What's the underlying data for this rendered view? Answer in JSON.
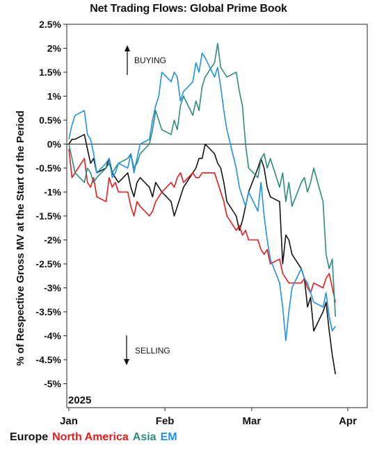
{
  "chart_data": {
    "type": "line",
    "title": "Net Trading Flows: Global Prime Book",
    "ylabel": "% of Respective Gross MV at the Start of the Period",
    "year_label": "2025",
    "ylim": [
      -5.5,
      2.5
    ],
    "yticks": [
      2.5,
      2.0,
      1.5,
      1.0,
      0.5,
      0,
      -0.5,
      -1,
      -1.5,
      -2,
      -2.5,
      -3,
      -3.5,
      -4,
      -4.5,
      -5
    ],
    "ytick_labels": [
      "2.5%",
      "2%",
      "1.5%",
      "1%",
      "0.5%",
      "0%",
      "-0.5%",
      "-1%",
      "-1.5%",
      "-2%",
      "-2.5%",
      "-3%",
      "-3.5%",
      "-4%",
      "-4.5%",
      "-5%"
    ],
    "xlim": [
      "2025-01-01",
      "2025-04-01"
    ],
    "xticks": [
      "2025-01-01",
      "2025-02-01",
      "2025-03-01",
      "2025-04-01"
    ],
    "xtick_labels": [
      "Jan",
      "Feb",
      "Mar",
      "Apr"
    ],
    "zero_line": true,
    "grid": false,
    "legend_position": "bottom-left",
    "annotations": [
      {
        "text": "BUYING",
        "arrow": "up"
      },
      {
        "text": "SELLING",
        "arrow": "down"
      }
    ],
    "series": [
      {
        "name": "Europe",
        "color": "#111111",
        "x": [
          "2025-01-01",
          "2025-01-02",
          "2025-01-03",
          "2025-01-06",
          "2025-01-07",
          "2025-01-08",
          "2025-01-09",
          "2025-01-10",
          "2025-01-13",
          "2025-01-14",
          "2025-01-15",
          "2025-01-16",
          "2025-01-17",
          "2025-01-20",
          "2025-01-21",
          "2025-01-22",
          "2025-01-23",
          "2025-01-24",
          "2025-01-27",
          "2025-01-28",
          "2025-01-29",
          "2025-01-30",
          "2025-01-31",
          "2025-02-03",
          "2025-02-04",
          "2025-02-05",
          "2025-02-06",
          "2025-02-07",
          "2025-02-10",
          "2025-02-11",
          "2025-02-12",
          "2025-02-13",
          "2025-02-14",
          "2025-02-17",
          "2025-02-18",
          "2025-02-19",
          "2025-02-20",
          "2025-02-21",
          "2025-02-24",
          "2025-02-25",
          "2025-02-26",
          "2025-02-27",
          "2025-02-28",
          "2025-03-03",
          "2025-03-04",
          "2025-03-05",
          "2025-03-06",
          "2025-03-07",
          "2025-03-10",
          "2025-03-11",
          "2025-03-12",
          "2025-03-13",
          "2025-03-14",
          "2025-03-17",
          "2025-03-18",
          "2025-03-19",
          "2025-03-20",
          "2025-03-21",
          "2025-03-24",
          "2025-03-25",
          "2025-03-26",
          "2025-03-27",
          "2025-03-28"
        ],
        "y": [
          0,
          0.1,
          0.1,
          0.2,
          -0.1,
          -0.4,
          -0.3,
          -0.6,
          -0.5,
          -0.3,
          -0.6,
          -0.7,
          -0.8,
          -0.6,
          -0.9,
          -1.1,
          -0.8,
          -0.7,
          -0.9,
          -1.1,
          -0.8,
          -0.9,
          -1.0,
          -1.2,
          -1.5,
          -1.3,
          -1.1,
          -0.9,
          -0.6,
          -0.5,
          -0.3,
          -0.3,
          0.0,
          -0.2,
          -0.4,
          -0.5,
          -0.8,
          -1.2,
          -1.5,
          -1.8,
          -1.6,
          -1.3,
          -1.0,
          -0.5,
          -0.3,
          -0.5,
          -0.9,
          -1.1,
          -1.2,
          -2.5,
          -1.9,
          -2.0,
          -2.3,
          -2.6,
          -2.8,
          -3.4,
          -3.2,
          -3.9,
          -3.5,
          -3.3,
          -3.9,
          -4.4,
          -4.8
        ]
      },
      {
        "name": "North America",
        "color": "#e41a1c",
        "x": [
          "2025-01-01",
          "2025-01-02",
          "2025-01-03",
          "2025-01-06",
          "2025-01-07",
          "2025-01-08",
          "2025-01-09",
          "2025-01-10",
          "2025-01-13",
          "2025-01-14",
          "2025-01-15",
          "2025-01-16",
          "2025-01-17",
          "2025-01-20",
          "2025-01-21",
          "2025-01-22",
          "2025-01-23",
          "2025-01-24",
          "2025-01-27",
          "2025-01-28",
          "2025-01-29",
          "2025-01-30",
          "2025-01-31",
          "2025-02-03",
          "2025-02-04",
          "2025-02-05",
          "2025-02-06",
          "2025-02-07",
          "2025-02-10",
          "2025-02-11",
          "2025-02-12",
          "2025-02-13",
          "2025-02-14",
          "2025-02-17",
          "2025-02-18",
          "2025-02-19",
          "2025-02-20",
          "2025-02-21",
          "2025-02-24",
          "2025-02-25",
          "2025-02-26",
          "2025-02-27",
          "2025-02-28",
          "2025-03-03",
          "2025-03-04",
          "2025-03-05",
          "2025-03-06",
          "2025-03-07",
          "2025-03-10",
          "2025-03-11",
          "2025-03-12",
          "2025-03-13",
          "2025-03-14",
          "2025-03-17",
          "2025-03-18",
          "2025-03-19",
          "2025-03-20",
          "2025-03-21",
          "2025-03-24",
          "2025-03-25",
          "2025-03-26",
          "2025-03-27",
          "2025-03-28"
        ],
        "y": [
          -0.1,
          -0.7,
          -0.6,
          -0.3,
          -0.8,
          -0.9,
          -0.7,
          -1.1,
          -1.2,
          -0.7,
          -0.9,
          -0.8,
          -1.0,
          -1.0,
          -1.3,
          -1.5,
          -1.2,
          -1.3,
          -1.5,
          -1.4,
          -1.2,
          -1.1,
          -1.0,
          -0.8,
          -0.9,
          -0.7,
          -0.6,
          -0.8,
          -0.6,
          -0.7,
          -0.7,
          -0.6,
          -0.6,
          -0.6,
          -0.8,
          -1.0,
          -1.2,
          -1.5,
          -1.8,
          -1.7,
          -1.9,
          -1.8,
          -2.0,
          -2.0,
          -2.2,
          -2.3,
          -2.2,
          -2.5,
          -2.4,
          -2.7,
          -2.8,
          -2.9,
          -2.9,
          -2.9,
          -2.8,
          -3.0,
          -3.1,
          -2.9,
          -3.0,
          -2.8,
          -2.7,
          -3.0,
          -3.3
        ]
      },
      {
        "name": "Asia",
        "color": "#2a8c7c",
        "x": [
          "2025-01-01",
          "2025-01-02",
          "2025-01-03",
          "2025-01-06",
          "2025-01-07",
          "2025-01-08",
          "2025-01-09",
          "2025-01-10",
          "2025-01-13",
          "2025-01-14",
          "2025-01-15",
          "2025-01-16",
          "2025-01-17",
          "2025-01-20",
          "2025-01-21",
          "2025-01-22",
          "2025-01-23",
          "2025-01-24",
          "2025-01-27",
          "2025-01-28",
          "2025-01-29",
          "2025-01-30",
          "2025-01-31",
          "2025-02-03",
          "2025-02-04",
          "2025-02-05",
          "2025-02-06",
          "2025-02-07",
          "2025-02-10",
          "2025-02-11",
          "2025-02-12",
          "2025-02-13",
          "2025-02-14",
          "2025-02-17",
          "2025-02-18",
          "2025-02-19",
          "2025-02-20",
          "2025-02-21",
          "2025-02-24",
          "2025-02-25",
          "2025-02-26",
          "2025-02-27",
          "2025-02-28",
          "2025-03-03",
          "2025-03-04",
          "2025-03-05",
          "2025-03-06",
          "2025-03-07",
          "2025-03-10",
          "2025-03-11",
          "2025-03-12",
          "2025-03-13",
          "2025-03-14",
          "2025-03-17",
          "2025-03-18",
          "2025-03-19",
          "2025-03-20",
          "2025-03-21",
          "2025-03-24",
          "2025-03-25",
          "2025-03-26",
          "2025-03-27",
          "2025-03-28"
        ],
        "y": [
          0,
          -0.3,
          -0.6,
          -0.8,
          -0.5,
          -0.6,
          -0.8,
          -0.7,
          -0.5,
          -0.4,
          -0.6,
          -0.5,
          -0.4,
          -0.3,
          -0.2,
          -0.5,
          -0.4,
          -0.2,
          0.0,
          0.3,
          0.7,
          0.5,
          0.3,
          0.2,
          0.5,
          0.3,
          0.8,
          1.0,
          0.6,
          0.9,
          0.7,
          1.2,
          1.4,
          1.7,
          2.1,
          1.6,
          1.5,
          1.4,
          1.5,
          1.1,
          0.8,
          0.0,
          -0.5,
          -0.7,
          -0.3,
          -0.2,
          -0.5,
          -0.3,
          -0.9,
          -0.6,
          -1.2,
          -0.8,
          -1.3,
          -0.8,
          -0.7,
          -1.0,
          -0.8,
          -0.5,
          -1.2,
          -2.3,
          -2.6,
          -2.4,
          -3.6
        ]
      },
      {
        "name": "EM",
        "color": "#1e90e8",
        "x": [
          "2025-01-01",
          "2025-01-02",
          "2025-01-03",
          "2025-01-06",
          "2025-01-07",
          "2025-01-08",
          "2025-01-09",
          "2025-01-10",
          "2025-01-13",
          "2025-01-14",
          "2025-01-15",
          "2025-01-16",
          "2025-01-17",
          "2025-01-20",
          "2025-01-21",
          "2025-01-22",
          "2025-01-23",
          "2025-01-24",
          "2025-01-27",
          "2025-01-28",
          "2025-01-29",
          "2025-01-30",
          "2025-01-31",
          "2025-02-03",
          "2025-02-04",
          "2025-02-05",
          "2025-02-06",
          "2025-02-07",
          "2025-02-10",
          "2025-02-11",
          "2025-02-12",
          "2025-02-13",
          "2025-02-14",
          "2025-02-17",
          "2025-02-18",
          "2025-02-19",
          "2025-02-20",
          "2025-02-21",
          "2025-02-24",
          "2025-02-25",
          "2025-02-26",
          "2025-02-27",
          "2025-02-28",
          "2025-03-03",
          "2025-03-04",
          "2025-03-05",
          "2025-03-06",
          "2025-03-07",
          "2025-03-10",
          "2025-03-11",
          "2025-03-12",
          "2025-03-13",
          "2025-03-14",
          "2025-03-17",
          "2025-03-18",
          "2025-03-19",
          "2025-03-20",
          "2025-03-21",
          "2025-03-24",
          "2025-03-25",
          "2025-03-26",
          "2025-03-27",
          "2025-03-28"
        ],
        "y": [
          0.1,
          0.4,
          0.6,
          0.7,
          0.2,
          0.1,
          -0.2,
          -0.6,
          -0.4,
          -0.3,
          -0.7,
          -0.6,
          -0.4,
          -0.5,
          -0.2,
          -0.6,
          -0.3,
          0.0,
          0.1,
          0.5,
          0.8,
          1.0,
          1.5,
          1.3,
          1.5,
          1.4,
          0.9,
          1.1,
          1.3,
          1.7,
          1.5,
          1.9,
          1.8,
          1.4,
          1.6,
          1.2,
          0.7,
          0.3,
          -0.5,
          -0.9,
          -1.1,
          -1.3,
          -1.0,
          -1.4,
          -0.8,
          -1.5,
          -2.0,
          -2.4,
          -2.9,
          -3.4,
          -4.1,
          -3.5,
          -3.0,
          -2.6,
          -2.8,
          -2.9,
          -3.1,
          -3.3,
          -3.4,
          -3.1,
          -3.6,
          -3.9,
          -3.8
        ]
      }
    ]
  }
}
